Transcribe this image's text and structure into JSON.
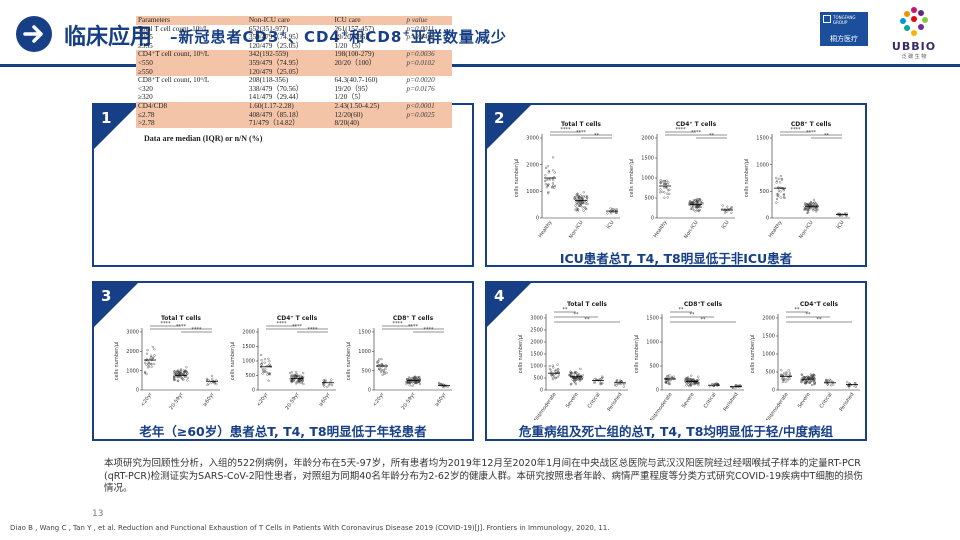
{
  "header": {
    "title": "临床应用",
    "subtitle_parts": [
      "–新冠患者CD3",
      "+",
      "、CD4",
      "+",
      "和CD8",
      "+",
      "亚群数量减少"
    ],
    "logo_tongfang": {
      "en": "TONGFANG GROUP",
      "cn": "桐方医疗"
    },
    "logo_ubbio": {
      "brand": "UBBIO",
      "cn": "泛 碳 生 物"
    }
  },
  "panels": [
    {
      "number": "1",
      "caption": ""
    },
    {
      "number": "2",
      "caption": "ICU患者总T, T4, T8明显低于非ICU患者"
    },
    {
      "number": "3",
      "caption": "老年（≥60岁）患者总T, T4, T8明显低于年轻患者"
    },
    {
      "number": "4",
      "caption": "危重病组及死亡组的总T, T4, T8均明显低于轻/中度病组"
    }
  ],
  "table": {
    "columns": [
      "Parameters",
      "Non-ICU care",
      "ICU care",
      "p value"
    ],
    "rows": [
      [
        "Total T cell count, 10⁶/L",
        "652(351-977)",
        "261(157-457)",
        "p=0.0011"
      ],
      [
        "<955",
        "359/479（74.95）",
        "19/20（95）",
        "p=0.0404"
      ],
      [
        "≥955",
        "120/479（25.05）",
        "1/20（5）",
        ""
      ],
      [
        "CD4⁺T cell count, 10⁶/L",
        "342(192-559)",
        "198(100-279)",
        "p=0.0036"
      ],
      [
        "<550",
        "359/479（74.95）",
        "20/20（100）",
        "p=0.0102"
      ],
      [
        "≥550",
        "120/479（25.05）",
        "",
        ""
      ],
      [
        "CD8⁺T cell count, 10⁶/L",
        "208(118-356)",
        "64.3(40.7-160)",
        "p=0.0020"
      ],
      [
        "<320",
        "338/479（70.56）",
        "19/20（95）",
        "p=0.0176"
      ],
      [
        "≥320",
        "141/479（29.44）",
        "1/20（5）",
        ""
      ],
      [
        "CD4/CD8",
        "1.60(1.17-2.28)",
        "2.43(1.50-4.25)",
        "p<0.0001"
      ],
      [
        "≤2.78",
        "408/479（85.18）",
        "12/20(60)",
        "p=0.0025"
      ],
      [
        ">2.78",
        "71/479（14.82）",
        "8/20(40)",
        ""
      ]
    ],
    "highlight_rows": [
      3,
      4,
      5,
      9,
      10,
      11
    ],
    "note": "Data are median (IQR) or n/N (%)"
  },
  "chart_data": [
    {
      "panel": "2",
      "type": "scatter",
      "title": "Total T cells",
      "ylabel": "cells number/μl",
      "ylim": [
        0,
        3000
      ],
      "yticks": [
        0,
        1000,
        2000,
        3000
      ],
      "categories": [
        "Healthy",
        "Non-ICU",
        "ICU"
      ],
      "medians": [
        1500,
        650,
        260
      ],
      "sig": [
        "****",
        "****",
        "**"
      ]
    },
    {
      "panel": "2",
      "type": "scatter",
      "title": "CD4⁺ T cells",
      "ylabel": "cells number/μl",
      "ylim": [
        0,
        2000
      ],
      "yticks": [
        0,
        500,
        1000,
        1500,
        2000
      ],
      "categories": [
        "Healthy",
        "Non-ICU",
        "ICU"
      ],
      "medians": [
        800,
        340,
        200
      ],
      "sig": [
        "****",
        "****",
        "**"
      ]
    },
    {
      "panel": "2",
      "type": "scatter",
      "title": "CD8⁺ T cells",
      "ylabel": "cells number/μl",
      "ylim": [
        0,
        1500
      ],
      "yticks": [
        0,
        500,
        1000,
        1500
      ],
      "categories": [
        "Healthy",
        "Non-ICU",
        "ICU"
      ],
      "medians": [
        560,
        210,
        65
      ],
      "sig": [
        "****",
        "****",
        "**"
      ]
    },
    {
      "panel": "3",
      "type": "scatter",
      "title": "Total T cells",
      "ylabel": "cells number/μl",
      "ylim": [
        0,
        3000
      ],
      "yticks": [
        0,
        1000,
        2000,
        3000
      ],
      "categories": [
        "<20yr",
        "20-59yr",
        "≥60yr"
      ],
      "medians": [
        1550,
        760,
        450
      ],
      "sig": [
        "****",
        "****",
        "****"
      ]
    },
    {
      "panel": "3",
      "type": "scatter",
      "title": "CD4⁺ T cells",
      "ylabel": "cells number/μl",
      "ylim": [
        0,
        2000
      ],
      "yticks": [
        0,
        500,
        1000,
        1500,
        2000
      ],
      "categories": [
        "<20yr",
        "20-59yr",
        "≥60yr"
      ],
      "medians": [
        800,
        400,
        250
      ],
      "sig": [
        "****",
        "****",
        "****"
      ]
    },
    {
      "panel": "3",
      "type": "scatter",
      "title": "CD8⁺ T cells",
      "ylabel": "cells number/μl",
      "ylim": [
        0,
        1500
      ],
      "yticks": [
        0,
        500,
        1000,
        1500
      ],
      "categories": [
        "<20yr",
        "20-59yr",
        "≥60yr"
      ],
      "medians": [
        620,
        250,
        120
      ],
      "sig": [
        "****",
        "****",
        "****"
      ]
    },
    {
      "panel": "4",
      "type": "scatter",
      "title": "Total  T cells",
      "ylabel": "cells number/μl",
      "ylim": [
        0,
        3000
      ],
      "yticks": [
        0,
        500,
        1000,
        1500,
        2000,
        2500,
        3000
      ],
      "categories": [
        "Mild/moderate",
        "Severe",
        "Critical",
        "Perished"
      ],
      "medians": [
        700,
        550,
        400,
        300
      ],
      "sig": [
        "**",
        "**",
        "**"
      ]
    },
    {
      "panel": "4",
      "type": "scatter",
      "title": "CD8⁺T cells",
      "ylabel": "cells number/μl",
      "ylim": [
        0,
        1500
      ],
      "yticks": [
        0,
        500,
        1000,
        1500
      ],
      "categories": [
        "Mild/moderate",
        "Severe",
        "Critical",
        "Perished"
      ],
      "medians": [
        230,
        180,
        100,
        70
      ],
      "sig": [
        "**",
        "**",
        "**"
      ]
    },
    {
      "panel": "4",
      "type": "scatter",
      "title": "CD4⁺T cells",
      "ylabel": "cells number/μl",
      "ylim": [
        0,
        2000
      ],
      "yticks": [
        0,
        500,
        1000,
        1500,
        2000
      ],
      "categories": [
        "Mild/moderate",
        "Severe",
        "Critical",
        "Perished"
      ],
      "medians": [
        380,
        300,
        200,
        150
      ],
      "sig": [
        "**",
        "**",
        "**"
      ]
    }
  ],
  "body_text": "本项研究为回顾性分析，入组的522例病例，年龄分布在5天-97岁，所有患者均为2019年12月至2020年1月间在中央战区总医院与武汉汉阳医院经过经咽喉拭子样本的定量RT-PCR (qRT-PCR)检测证实为SARS-CoV-2阳性患者，对照组为同期40名年龄分布为2-62岁的健康人群。本研究按照患者年龄、病情严重程度等分类方式研究COVID-19疾病中T细胞的损伤情况。",
  "page_number": "13",
  "reference": "Diao B , Wang C , Tan Y , et al. Reduction and Functional Exhaustion of T Cells in Patients With Coronavirus Disease 2019 (COVID-19)[J]. Frontiers in Immunology, 2020, 11.",
  "colors": {
    "brand": "#163f86",
    "highlight": "#f3c4a8"
  }
}
